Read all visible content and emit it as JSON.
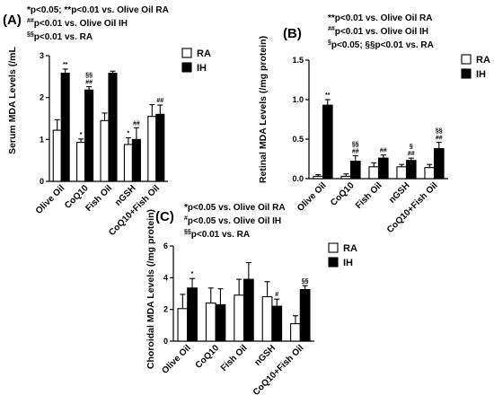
{
  "chart_data": [
    {
      "type": "bar",
      "panel_label": "(A)",
      "notes": [
        {
          "sup": "",
          "text": "*p<0.05; **p<0.01 vs. Olive Oil RA"
        },
        {
          "sup": "##",
          "text": "p<0.01 vs. Olive Oil IH"
        },
        {
          "sup": "§§",
          "text": "p<0.01 vs. RA"
        }
      ],
      "ylabel": "Serum MDA Levels (/mL",
      "ylim": [
        0,
        3
      ],
      "yticks": [
        "0",
        "1",
        "2",
        "3"
      ],
      "categories": [
        "Olive Oil",
        "CoQ10",
        "Fish Oil",
        "nGSH",
        "CoQ10+Fish Oil"
      ],
      "series": [
        {
          "name": "RA",
          "values": [
            1.22,
            0.93,
            1.45,
            0.88,
            1.55
          ],
          "errors": [
            0.25,
            0.08,
            0.18,
            0.16,
            0.28
          ],
          "marks": [
            "",
            "*",
            "",
            "*",
            ""
          ]
        },
        {
          "name": "IH",
          "values": [
            2.58,
            2.18,
            2.58,
            1.0,
            1.6
          ],
          "errors": [
            0.1,
            0.08,
            0.05,
            0.28,
            0.22
          ],
          "marks": [
            "**",
            "§§\n##",
            "",
            "##",
            "##"
          ]
        }
      ],
      "legend": [
        "RA",
        "IH"
      ]
    },
    {
      "type": "bar",
      "panel_label": "(B)",
      "notes": [
        {
          "sup": "",
          "text": "**p<0.01 vs. Olive Oil RA"
        },
        {
          "sup": "##",
          "text": "p<0.01 vs. Olive Oil IH"
        },
        {
          "sup": "§",
          "text": "p<0.05; §§p<0.01 vs. RA"
        }
      ],
      "ylabel": "Retinal MDA Levels (/mg protein)",
      "ylim": [
        0,
        1.5
      ],
      "yticks": [
        "0.0",
        "0.5",
        "1.0",
        "1.5"
      ],
      "categories": [
        "Olive Oil",
        "CoQ10",
        "Fish Oil",
        "nGSH",
        "CoQ10+Fish Oil"
      ],
      "series": [
        {
          "name": "RA",
          "values": [
            0.03,
            0.03,
            0.15,
            0.15,
            0.14
          ],
          "errors": [
            0.02,
            0.03,
            0.05,
            0.03,
            0.04
          ],
          "marks": [
            "",
            "",
            "",
            "",
            ""
          ]
        },
        {
          "name": "IH",
          "values": [
            0.93,
            0.22,
            0.26,
            0.23,
            0.38
          ],
          "errors": [
            0.07,
            0.07,
            0.04,
            0.03,
            0.08
          ],
          "marks": [
            "**",
            "§§\n##",
            "##",
            "§\n##",
            "§§\n##"
          ]
        }
      ],
      "legend": [
        "RA",
        "IH"
      ]
    },
    {
      "type": "bar",
      "panel_label": "(C)",
      "notes": [
        {
          "sup": "",
          "text": "*p<0.05 vs. Olive Oil RA"
        },
        {
          "sup": "#",
          "text": "p<0.05 vs. Olive Oil IH"
        },
        {
          "sup": "§§",
          "text": "p<0.01 vs. RA"
        }
      ],
      "ylabel": "Choroidal MDA Levels (/mg protein)",
      "ylim": [
        0,
        6
      ],
      "yticks": [
        "0",
        "2",
        "4",
        "6"
      ],
      "categories": [
        "Olive Oil",
        "CoQ10",
        "Fish Oil",
        "nGSH",
        "CoQ10+Fish Oil"
      ],
      "series": [
        {
          "name": "RA",
          "values": [
            2.05,
            2.4,
            2.9,
            2.8,
            1.1
          ],
          "errors": [
            0.9,
            0.95,
            1.0,
            0.95,
            0.5
          ],
          "marks": [
            "",
            "",
            "",
            "",
            ""
          ]
        },
        {
          "name": "IH",
          "values": [
            3.35,
            2.3,
            3.9,
            2.2,
            3.25
          ],
          "errors": [
            0.6,
            1.0,
            1.05,
            0.45,
            0.25
          ],
          "marks": [
            "*",
            "",
            "",
            "#",
            "§§"
          ]
        }
      ],
      "legend": [
        "RA",
        "IH"
      ]
    }
  ]
}
